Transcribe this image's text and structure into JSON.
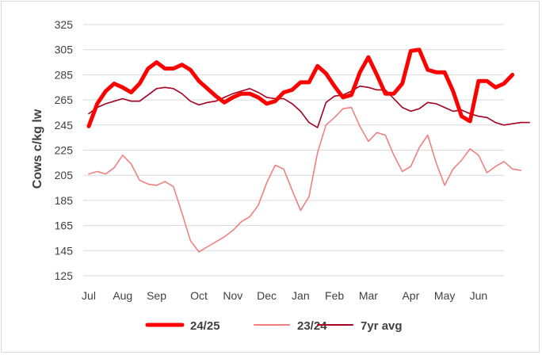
{
  "chart_data": {
    "type": "line",
    "title": "",
    "ylabel": "Cows c/kg lw",
    "xlabel": "",
    "ylim": [
      125,
      325
    ],
    "yticks": [
      125,
      145,
      165,
      185,
      205,
      225,
      245,
      265,
      285,
      305,
      325
    ],
    "xlim": [
      0,
      49
    ],
    "month_labels": [
      {
        "label": "Jul",
        "x": 0
      },
      {
        "label": "Aug",
        "x": 4
      },
      {
        "label": "Sep",
        "x": 8
      },
      {
        "label": "Oct",
        "x": 13
      },
      {
        "label": "Nov",
        "x": 17
      },
      {
        "label": "Dec",
        "x": 21
      },
      {
        "label": "Jan",
        "x": 25
      },
      {
        "label": "Feb",
        "x": 29
      },
      {
        "label": "Mar",
        "x": 33
      },
      {
        "label": "Apr",
        "x": 38
      },
      {
        "label": "May",
        "x": 42
      },
      {
        "label": "Jun",
        "x": 46
      }
    ],
    "grid": "horizontal",
    "legend_position": "bottom",
    "series": [
      {
        "name": "24/25",
        "color": "#ff0000",
        "values": [
          244,
          262,
          272,
          278,
          275,
          271,
          278,
          290,
          295,
          290,
          290,
          293,
          289,
          280,
          274,
          268,
          263,
          267,
          270,
          270,
          267,
          262,
          264,
          271,
          273,
          279,
          279,
          292,
          286,
          276,
          267,
          269,
          287,
          299,
          285,
          270,
          270,
          278,
          304,
          305,
          289,
          287,
          287,
          272,
          252,
          248,
          280,
          280,
          275,
          278,
          285
        ]
      },
      {
        "name": "23/24",
        "color": "#f08080",
        "values": [
          206,
          208,
          206,
          211,
          221,
          214,
          201,
          198,
          197,
          200,
          196,
          175,
          153,
          144,
          148,
          152,
          156,
          161,
          168,
          172,
          181,
          199,
          213,
          210,
          193,
          177,
          188,
          223,
          245,
          251,
          258,
          259,
          244,
          232,
          239,
          237,
          221,
          208,
          212,
          227,
          237,
          215,
          197,
          210,
          217,
          226,
          221,
          207,
          212,
          216,
          210,
          209
        ]
      },
      {
        "name": "7yr avg",
        "color": "#a50021",
        "values": [
          254,
          259,
          262,
          264,
          266,
          264,
          264,
          269,
          274,
          275,
          274,
          270,
          264,
          261,
          263,
          264,
          267,
          270,
          272,
          274,
          271,
          267,
          266,
          266,
          262,
          256,
          247,
          243,
          263,
          268,
          269,
          272,
          276,
          275,
          273,
          273,
          266,
          259,
          256,
          258,
          263,
          262,
          259,
          256,
          257,
          254,
          252,
          251,
          247,
          245,
          246,
          247,
          247
        ]
      }
    ]
  }
}
